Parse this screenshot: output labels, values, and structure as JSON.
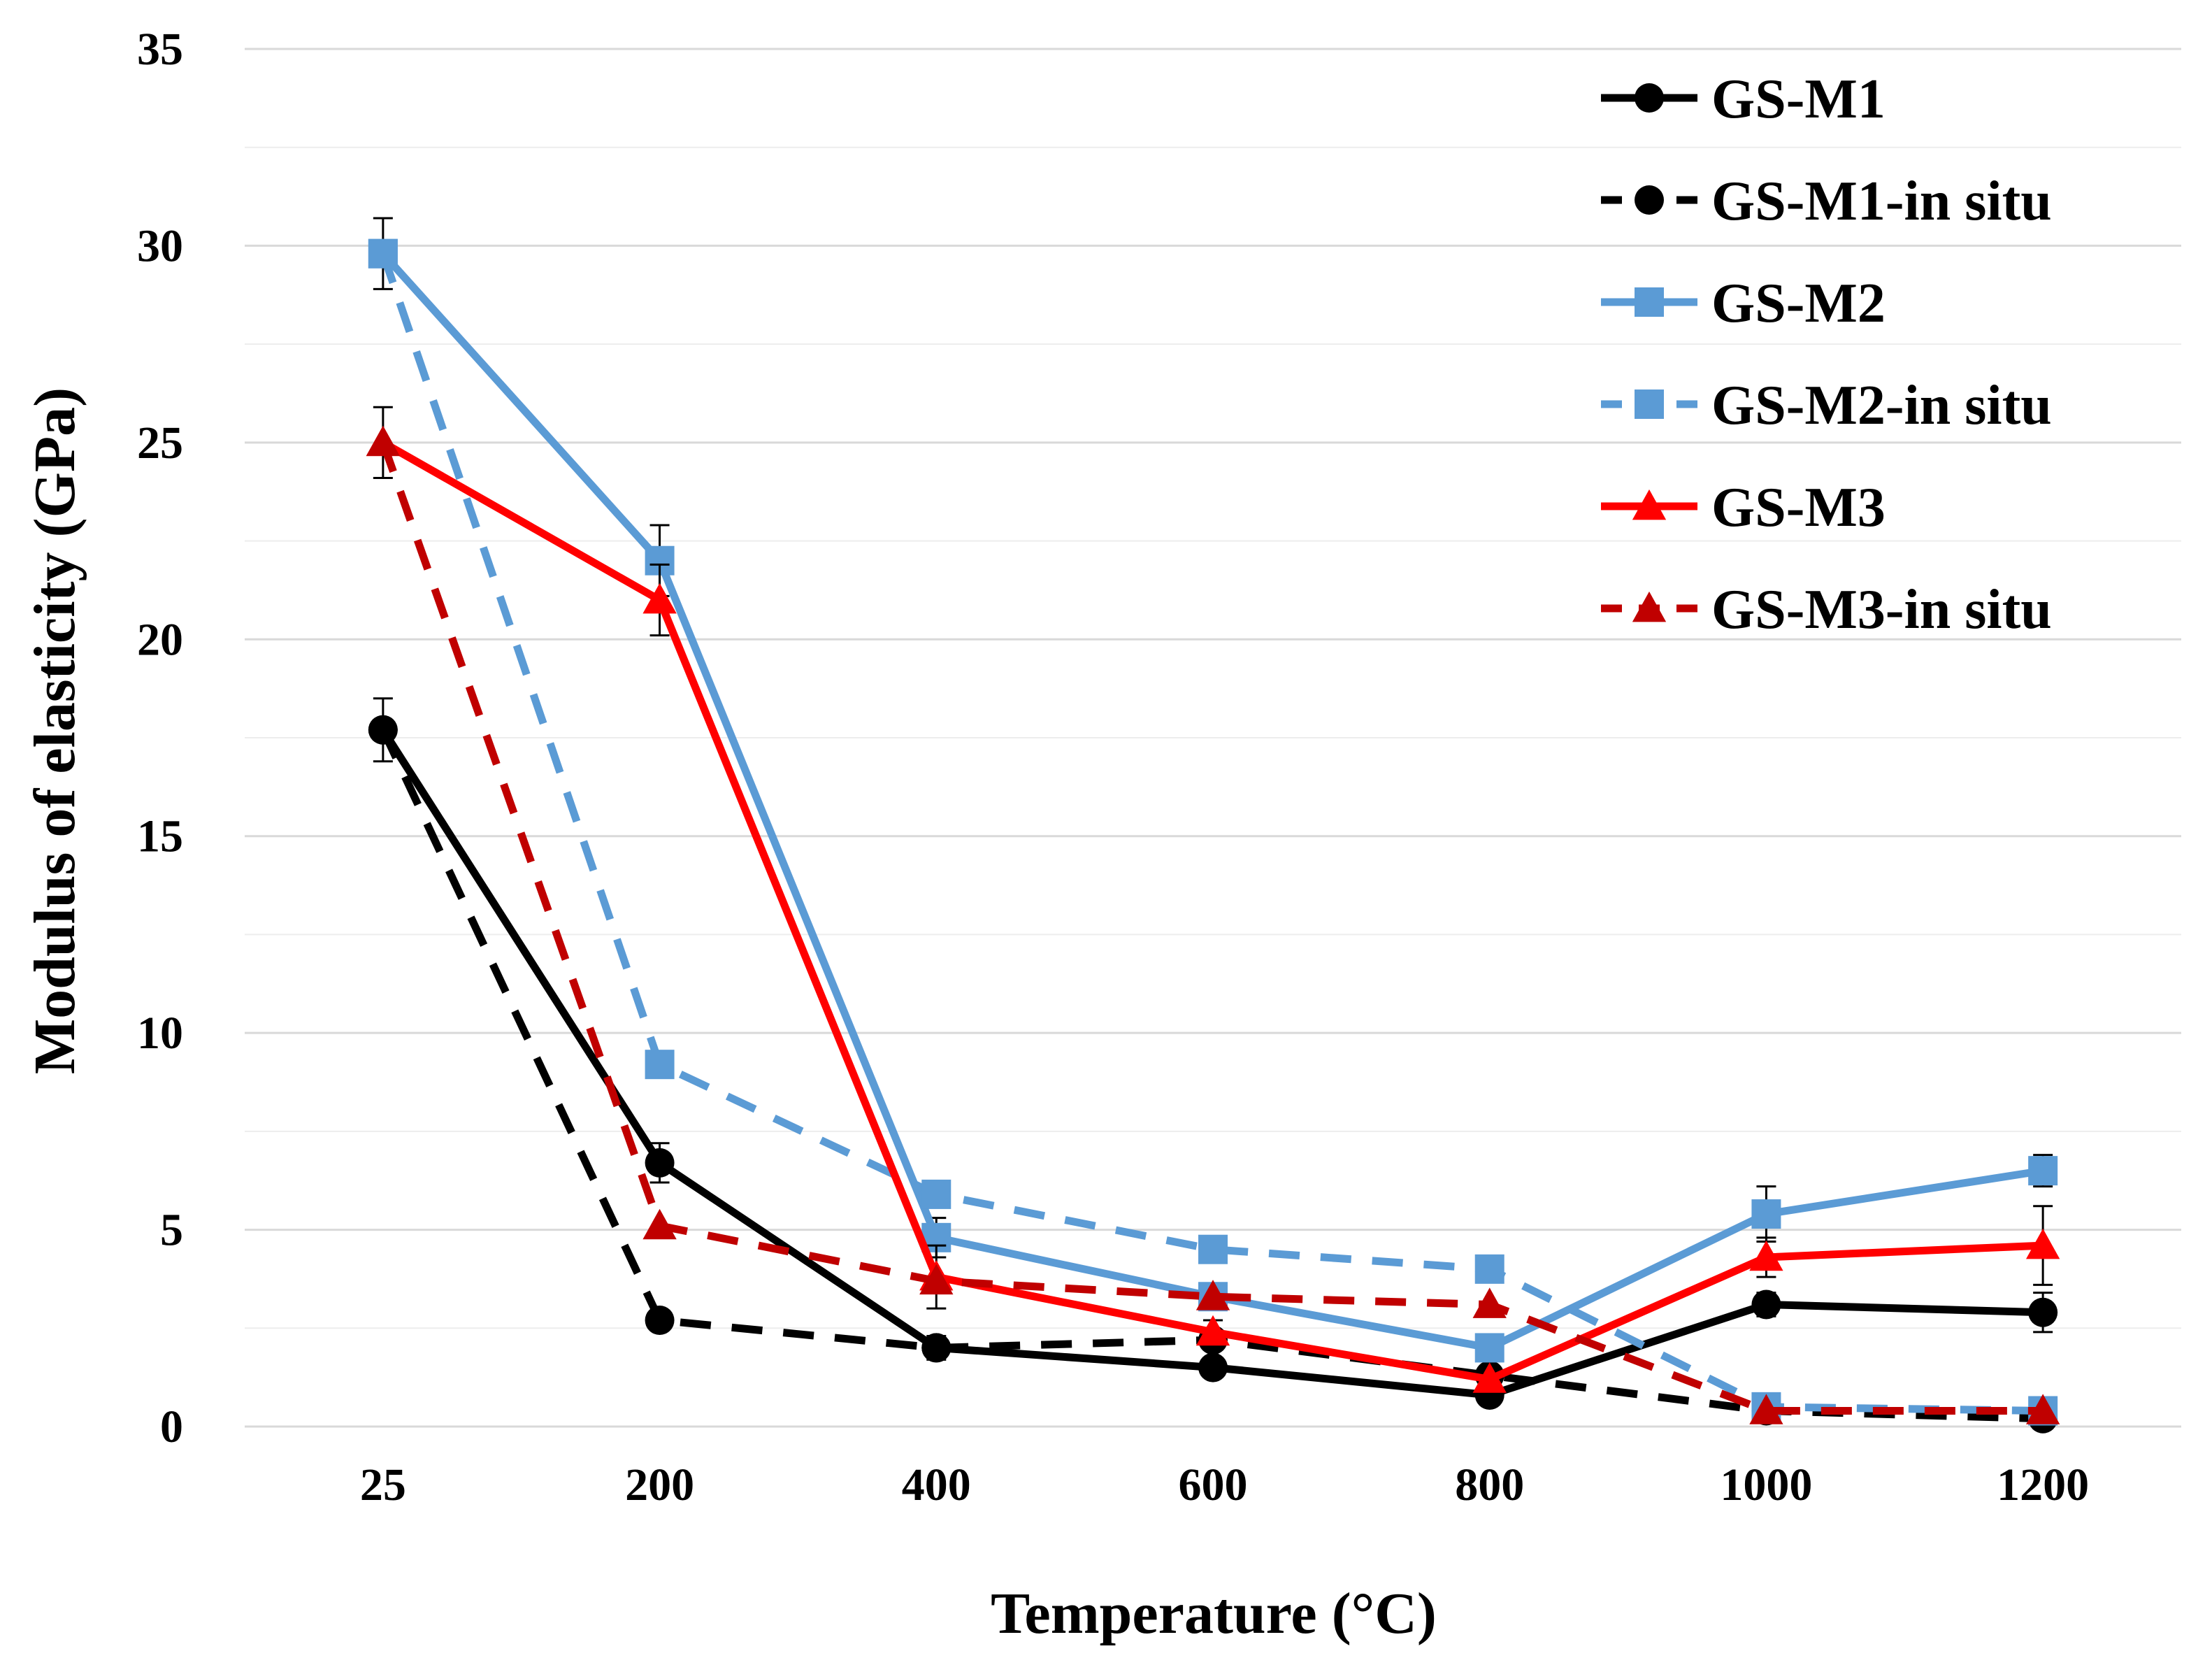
{
  "chart_data": {
    "type": "line",
    "title": "",
    "xlabel": "Temperature (°C)",
    "ylabel": "Modulus of elasticity (GPa)",
    "categories": [
      "25",
      "200",
      "400",
      "600",
      "800",
      "1000",
      "1200"
    ],
    "ylim": [
      0,
      35
    ],
    "yticks": [
      "0",
      "5",
      "10",
      "15",
      "20",
      "25",
      "30",
      "35"
    ],
    "grid": "horizontal",
    "legend_position": "top-right",
    "series": [
      {
        "name": "GS-M1",
        "color": "#000000",
        "dashed": false,
        "marker": "circle",
        "values": [
          17.7,
          6.7,
          2.0,
          1.5,
          0.8,
          3.1,
          2.9
        ],
        "errors": [
          0.8,
          0.5,
          0.3,
          0.2,
          0.2,
          0.3,
          0.5
        ]
      },
      {
        "name": "GS-M1-in situ",
        "color": "#000000",
        "dashed": true,
        "marker": "circle",
        "values": [
          17.7,
          2.7,
          2.0,
          2.2,
          1.3,
          0.4,
          0.2
        ],
        "errors": [
          0,
          0,
          0,
          0,
          0,
          0,
          0
        ]
      },
      {
        "name": "GS-M2",
        "color": "#5B9BD5",
        "dashed": false,
        "marker": "square",
        "values": [
          29.8,
          22.0,
          4.8,
          3.3,
          2.0,
          5.4,
          6.5
        ],
        "errors": [
          0.9,
          0.9,
          0.5,
          0.3,
          0.3,
          0.7,
          0.4
        ]
      },
      {
        "name": "GS-M2-in situ",
        "color": "#5B9BD5",
        "dashed": true,
        "marker": "square",
        "values": [
          29.8,
          9.2,
          5.9,
          4.5,
          4.0,
          0.5,
          0.4
        ],
        "errors": [
          0,
          0,
          0,
          0,
          0,
          0,
          0
        ]
      },
      {
        "name": "GS-M3",
        "color": "#FF0000",
        "dashed": false,
        "marker": "triangle",
        "values": [
          25.0,
          21.0,
          3.8,
          2.4,
          1.2,
          4.3,
          4.6
        ],
        "errors": [
          0.9,
          0.9,
          0.8,
          0.3,
          0.3,
          0.5,
          1.0
        ]
      },
      {
        "name": "GS-M3-in situ",
        "color": "#C00000",
        "dashed": true,
        "marker": "triangle",
        "values": [
          25.0,
          5.1,
          3.7,
          3.3,
          3.1,
          0.4,
          0.4
        ],
        "errors": [
          0,
          0,
          0,
          0,
          0,
          0,
          0
        ]
      }
    ]
  }
}
